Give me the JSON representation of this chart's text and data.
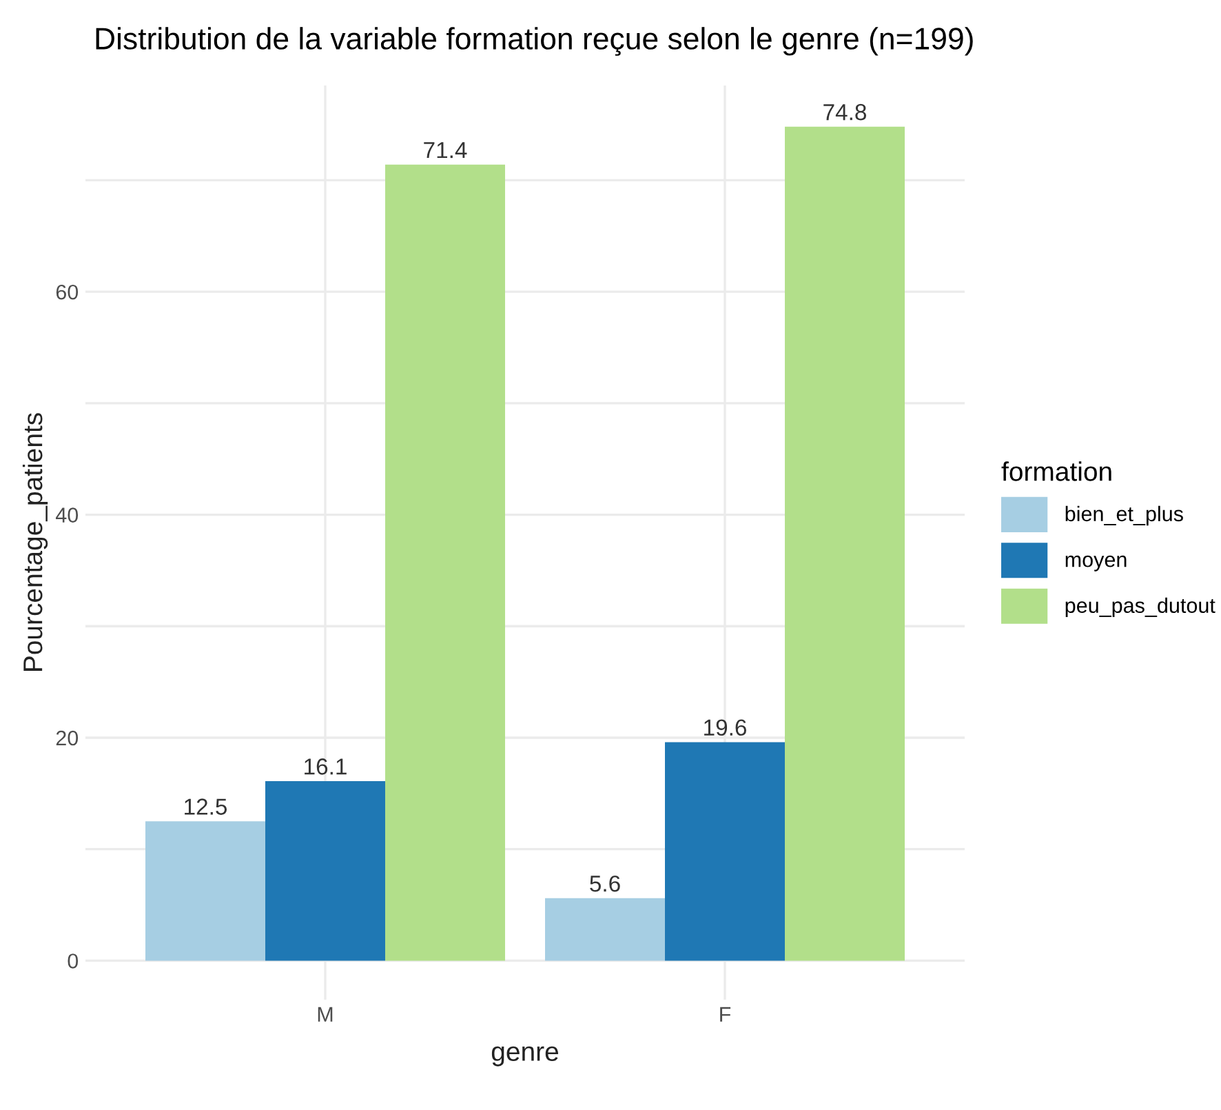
{
  "chart_data": {
    "type": "bar",
    "title": "Distribution de la variable formation reçue selon le genre (n=199)",
    "xlabel": "genre",
    "ylabel": "Pourcentage_patients",
    "legend_title": "formation",
    "categories": [
      "M",
      "F"
    ],
    "series": [
      {
        "name": "bien_et_plus",
        "color": "#a6cee3",
        "values": [
          12.5,
          5.6
        ]
      },
      {
        "name": "moyen",
        "color": "#1f78b4",
        "values": [
          16.1,
          19.6
        ]
      },
      {
        "name": "peu_pas_dutout",
        "color": "#b2df8a",
        "values": [
          71.4,
          74.8
        ]
      }
    ],
    "ylim": [
      -3.5,
      78.5
    ],
    "yticks": [
      0,
      {
        "value": 10,
        "label": null
      },
      20,
      {
        "value": 30,
        "label": null
      },
      40,
      {
        "value": 50,
        "label": null
      },
      60,
      {
        "value": 70,
        "label": null
      }
    ],
    "grid": true,
    "legend": "right",
    "data_labels": true
  }
}
